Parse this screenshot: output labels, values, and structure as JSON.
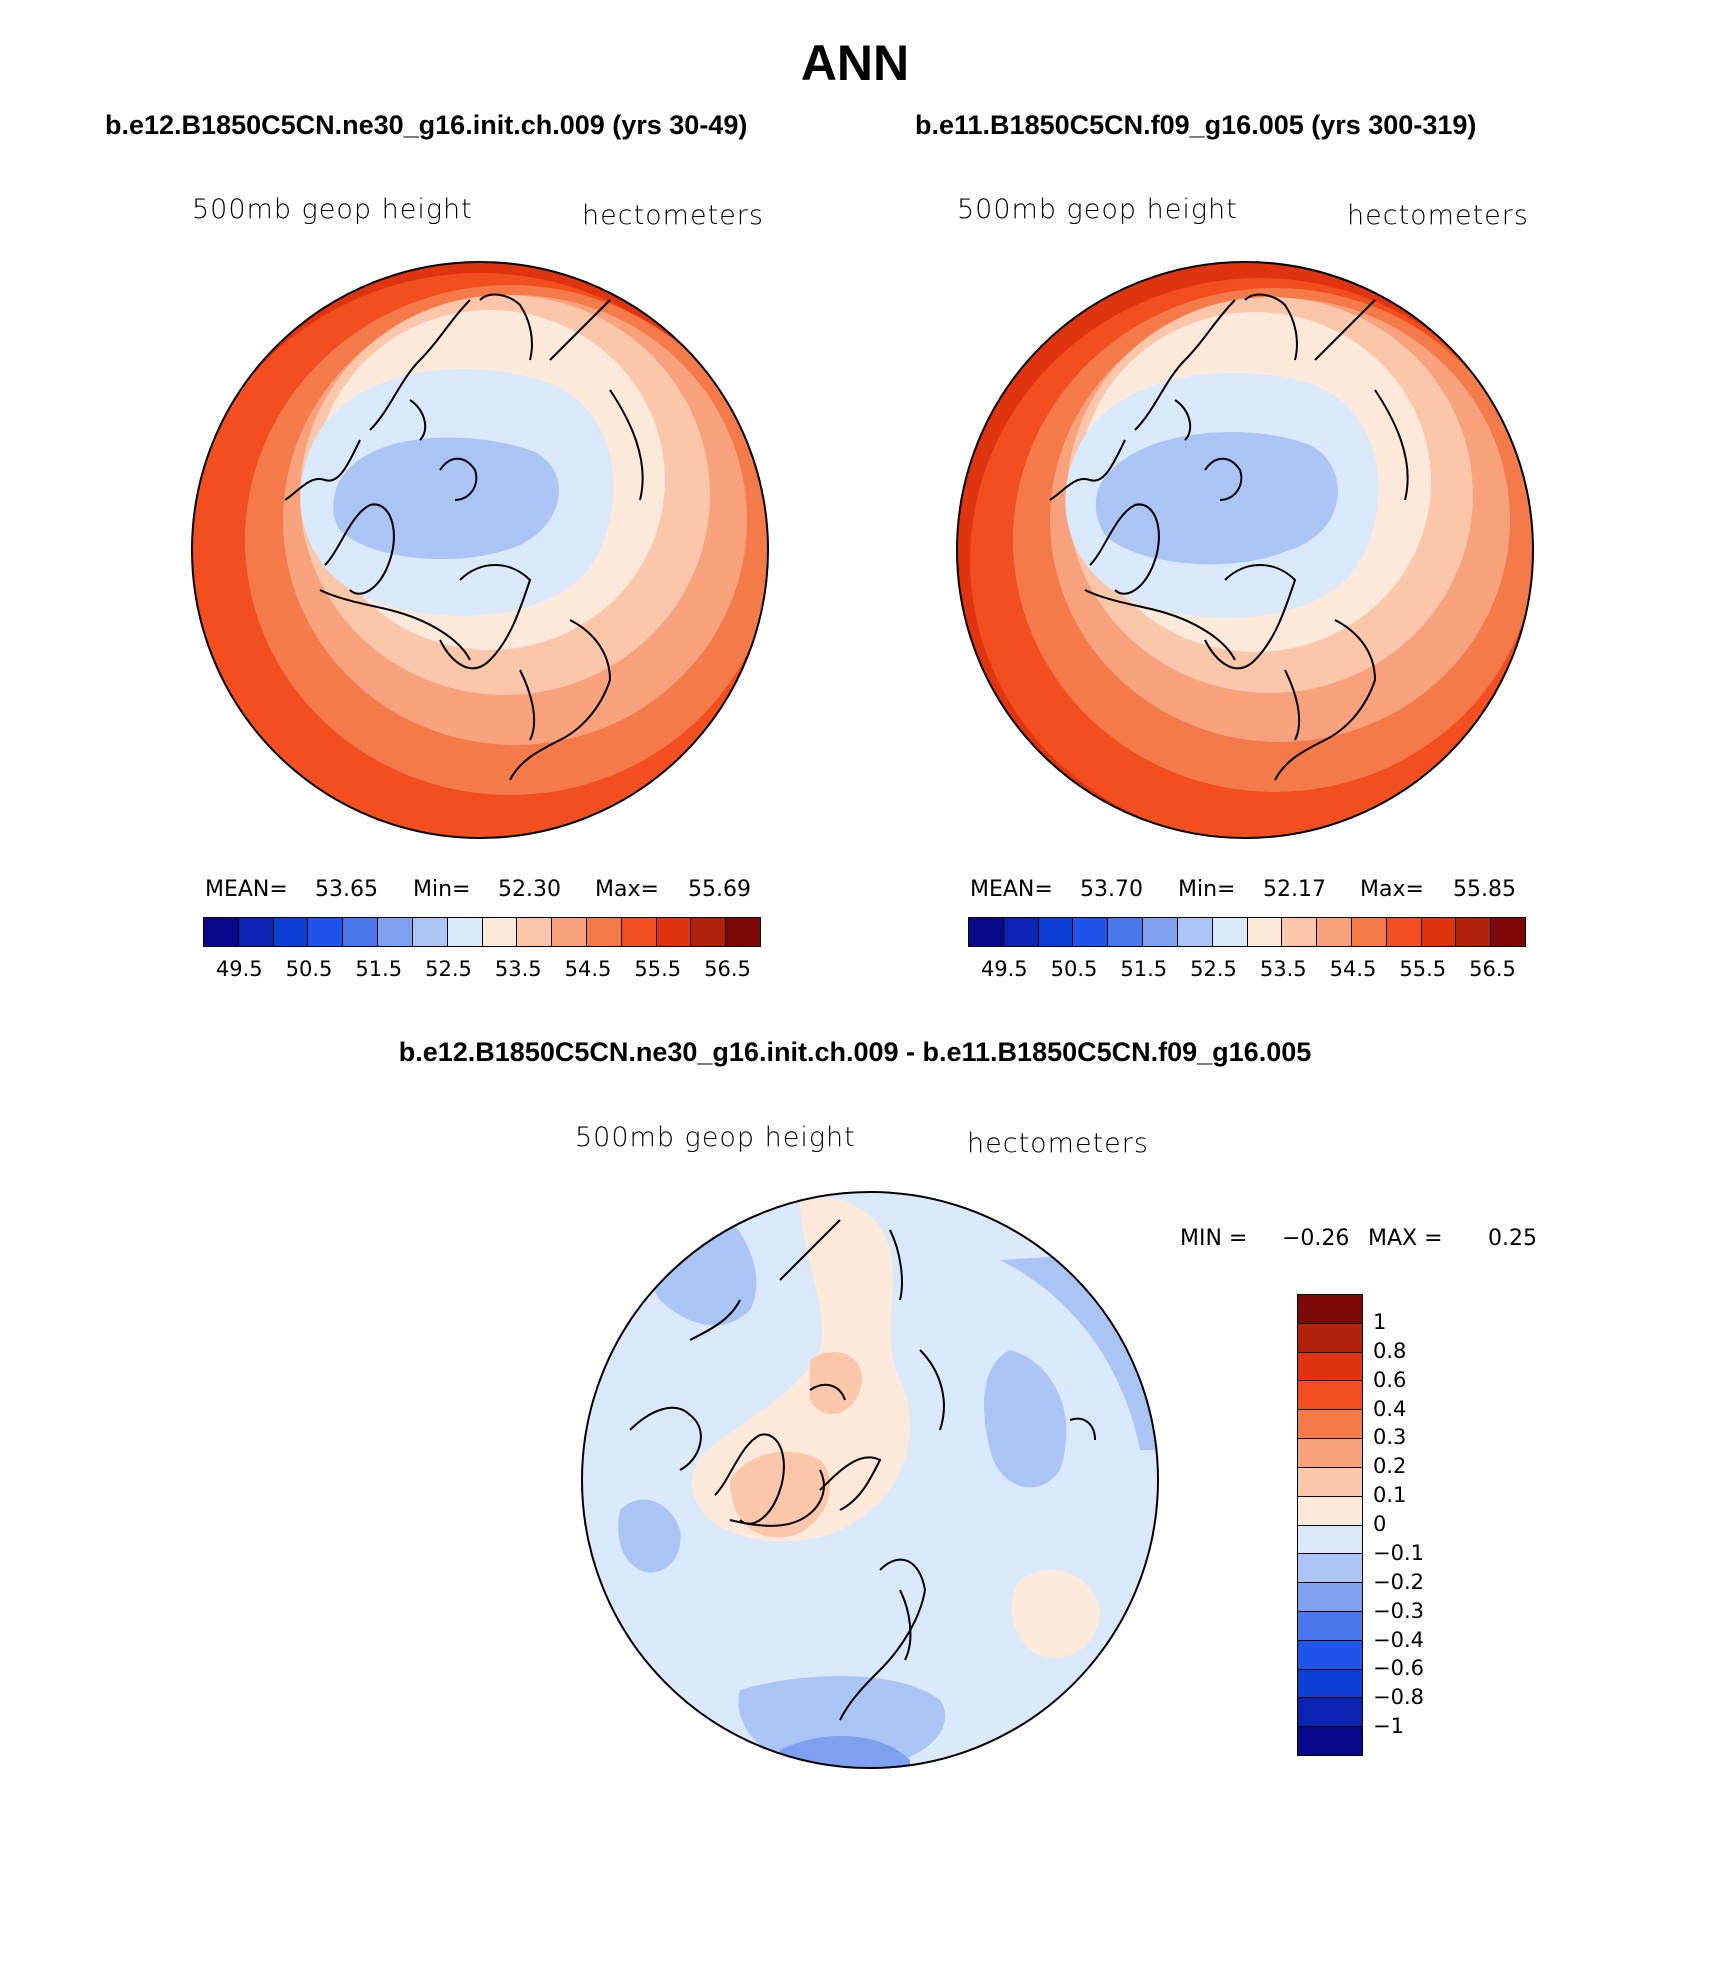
{
  "page": {
    "title": "ANN"
  },
  "panels": [
    {
      "subtitle": "b.e12.B1850C5CN.ne30_g16.init.ch.009 (yrs 30-49)",
      "left_label": "500mb geop height",
      "right_label": "hectometers",
      "stats": {
        "mean_label": "MEAN=",
        "mean": "53.65",
        "min_label": "Min=",
        "min": "52.30",
        "max_label": "Max=",
        "max": "55.69"
      }
    },
    {
      "subtitle": "b.e11.B1850C5CN.f09_g16.005 (yrs 300-319)",
      "left_label": "500mb geop height",
      "right_label": "hectometers",
      "stats": {
        "mean_label": "MEAN=",
        "mean": "53.70",
        "min_label": "Min=",
        "min": "52.17",
        "max_label": "Max=",
        "max": "55.85"
      }
    }
  ],
  "diff_panel": {
    "subtitle": "b.e12.B1850C5CN.ne30_g16.init.ch.009 - b.e11.B1850C5CN.f09_g16.005",
    "left_label": "500mb geop height",
    "right_label": "hectometers",
    "minmax": {
      "min_label": "MIN =",
      "min": "−0.26",
      "max_label": "MAX =",
      "max": "0.25"
    }
  },
  "colorbar_abs": {
    "colors": [
      "#08088c",
      "#0a23b0",
      "#0d3fd6",
      "#1f55ec",
      "#4a78ec",
      "#7da0ef",
      "#aac4f5",
      "#d9e8fb",
      "#fde9da",
      "#fbc6aa",
      "#f7a17d",
      "#f57a4a",
      "#f34e1f",
      "#df340f",
      "#b2220b",
      "#7e0707"
    ],
    "ticks": [
      "49.5",
      "50.5",
      "51.5",
      "52.5",
      "53.5",
      "54.5",
      "55.5",
      "56.5"
    ]
  },
  "colorbar_diff": {
    "colors": [
      "#7e0707",
      "#b2220b",
      "#df340f",
      "#f34e1f",
      "#f57a4a",
      "#f7a17d",
      "#fbc6aa",
      "#fde9da",
      "#d9e8fb",
      "#aac4f5",
      "#7da0ef",
      "#4a78ec",
      "#1f55ec",
      "#0d3fd6",
      "#0a23b0",
      "#08088c"
    ],
    "ticks": [
      "1",
      "0.8",
      "0.6",
      "0.4",
      "0.3",
      "0.2",
      "0.1",
      "0",
      "−0.1",
      "−0.2",
      "−0.3",
      "−0.4",
      "−0.6",
      "−0.8",
      "−1"
    ]
  },
  "chart_data": [
    {
      "type": "heatmap",
      "title": "b.e12.B1850C5CN.ne30_g16.init.ch.009 (yrs 30-49)",
      "variable": "500mb geop height",
      "units": "hectometers",
      "projection": "north polar stereographic",
      "levels": [
        49.5,
        50,
        50.5,
        51,
        51.5,
        52,
        52.5,
        53,
        53.5,
        54,
        54.5,
        55,
        55.5,
        56,
        56.5
      ],
      "mean": 53.65,
      "min": 52.3,
      "max": 55.69
    },
    {
      "type": "heatmap",
      "title": "b.e11.B1850C5CN.f09_g16.005 (yrs 300-319)",
      "variable": "500mb geop height",
      "units": "hectometers",
      "projection": "north polar stereographic",
      "levels": [
        49.5,
        50,
        50.5,
        51,
        51.5,
        52,
        52.5,
        53,
        53.5,
        54,
        54.5,
        55,
        55.5,
        56,
        56.5
      ],
      "mean": 53.7,
      "min": 52.17,
      "max": 55.85
    },
    {
      "type": "heatmap",
      "title": "b.e12.B1850C5CN.ne30_g16.init.ch.009 - b.e11.B1850C5CN.f09_g16.005",
      "variable": "500mb geop height",
      "units": "hectometers",
      "projection": "north polar stereographic",
      "levels": [
        -1,
        -0.8,
        -0.6,
        -0.4,
        -0.3,
        -0.2,
        -0.1,
        0,
        0.1,
        0.2,
        0.3,
        0.4,
        0.6,
        0.8,
        1
      ],
      "min": -0.26,
      "max": 0.25
    }
  ]
}
